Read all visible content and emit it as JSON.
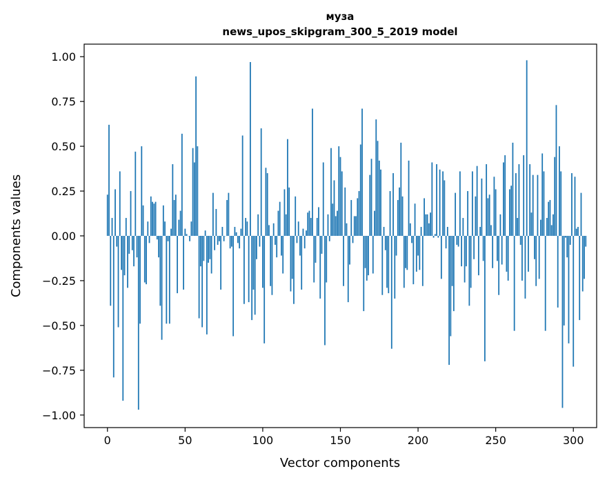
{
  "chart_data": {
    "type": "bar",
    "title": "муза",
    "subtitle": "news_upos_skipgram_300_5_2019 model",
    "xlabel": "Vector components",
    "ylabel": "Components values",
    "xlim": [
      -15,
      315
    ],
    "ylim": [
      -1.07,
      1.07
    ],
    "xticks": [
      0,
      50,
      100,
      150,
      200,
      250,
      300
    ],
    "yticks": [
      -1.0,
      -0.75,
      -0.5,
      -0.25,
      0.0,
      0.25,
      0.5,
      0.75,
      1.0
    ],
    "ytick_labels": [
      "−1.00",
      "−0.75",
      "−0.50",
      "−0.25",
      "0.00",
      "0.25",
      "0.50",
      "0.75",
      "1.00"
    ],
    "grid": false,
    "bar_color": "#1f77b4",
    "values": [
      0.23,
      0.62,
      -0.39,
      0.1,
      -0.79,
      0.26,
      -0.06,
      -0.51,
      0.36,
      -0.19,
      -0.92,
      -0.22,
      0.1,
      -0.29,
      -0.1,
      0.25,
      -0.08,
      -0.17,
      0.47,
      -0.12,
      -0.97,
      -0.49,
      0.5,
      0.17,
      -0.26,
      -0.27,
      0.08,
      -0.04,
      0.22,
      0.19,
      0.18,
      0.19,
      -0.02,
      -0.12,
      -0.39,
      -0.58,
      0.17,
      0.08,
      -0.49,
      -0.03,
      -0.49,
      0.04,
      0.4,
      0.2,
      0.23,
      -0.32,
      0.09,
      0.14,
      0.57,
      -0.3,
      0.04,
      0.01,
      0.0,
      -0.03,
      0.08,
      0.49,
      0.41,
      0.89,
      0.5,
      -0.46,
      -0.17,
      -0.51,
      -0.14,
      0.03,
      -0.55,
      -0.15,
      -0.13,
      -0.21,
      0.24,
      -0.08,
      0.15,
      -0.05,
      -0.03,
      -0.3,
      0.05,
      -0.03,
      0.0,
      0.2,
      0.24,
      -0.07,
      -0.06,
      -0.56,
      0.05,
      0.02,
      -0.04,
      -0.07,
      0.04,
      0.56,
      -0.38,
      0.1,
      0.08,
      -0.37,
      0.97,
      -0.47,
      -0.3,
      -0.44,
      -0.13,
      0.12,
      -0.06,
      0.6,
      -0.29,
      -0.6,
      0.38,
      0.35,
      0.06,
      -0.28,
      -0.33,
      0.07,
      -0.05,
      -0.12,
      0.14,
      0.19,
      -0.11,
      -0.21,
      0.26,
      0.12,
      0.54,
      0.27,
      -0.31,
      -0.24,
      -0.38,
      0.22,
      -0.04,
      0.08,
      -0.11,
      -0.3,
      0.04,
      -0.07,
      0.03,
      0.13,
      0.14,
      0.1,
      0.71,
      -0.26,
      -0.15,
      0.1,
      0.16,
      -0.35,
      -0.1,
      0.41,
      -0.61,
      -0.26,
      0.12,
      -0.03,
      0.49,
      0.18,
      0.31,
      0.11,
      0.14,
      0.5,
      0.44,
      0.36,
      -0.28,
      0.27,
      0.07,
      -0.37,
      -0.16,
      0.2,
      -0.04,
      0.11,
      0.11,
      0.21,
      0.25,
      0.51,
      0.71,
      -0.42,
      -0.18,
      -0.25,
      -0.22,
      0.34,
      0.43,
      -0.21,
      0.14,
      0.65,
      0.53,
      0.42,
      0.37,
      -0.33,
      0.05,
      -0.08,
      -0.29,
      -0.32,
      0.25,
      -0.63,
      0.35,
      -0.35,
      -0.11,
      0.2,
      0.27,
      0.52,
      0.22,
      -0.29,
      -0.18,
      -0.19,
      0.42,
      0.07,
      -0.04,
      -0.27,
      0.18,
      -0.2,
      -0.11,
      -0.19,
      0.05,
      -0.28,
      0.21,
      0.12,
      0.12,
      0.07,
      0.13,
      0.41,
      -0.01,
      0.01,
      0.4,
      -0.01,
      0.37,
      -0.24,
      0.36,
      0.31,
      -0.07,
      0.05,
      -0.72,
      -0.56,
      -0.28,
      -0.42,
      0.24,
      -0.05,
      -0.06,
      0.36,
      -0.17,
      0.1,
      -0.26,
      -0.17,
      0.25,
      -0.39,
      -0.29,
      0.36,
      -0.13,
      0.22,
      0.39,
      -0.22,
      0.05,
      0.32,
      -0.14,
      -0.7,
      0.4,
      0.21,
      0.23,
      0.06,
      -0.18,
      0.33,
      0.26,
      -0.14,
      -0.33,
      0.12,
      -0.16,
      0.41,
      0.45,
      -0.2,
      -0.25,
      0.26,
      0.28,
      0.52,
      -0.53,
      0.35,
      0.1,
      0.4,
      -0.05,
      -0.25,
      0.45,
      -0.35,
      0.98,
      -0.2,
      0.4,
      0.13,
      0.34,
      -0.13,
      -0.28,
      0.34,
      -0.24,
      0.09,
      0.46,
      0.36,
      -0.53,
      0.1,
      0.19,
      0.2,
      0.06,
      0.12,
      0.44,
      0.73,
      -0.4,
      0.5,
      0.36,
      -0.96,
      -0.5,
      -0.01,
      -0.12,
      -0.6,
      -0.05,
      0.35,
      -0.73,
      0.33,
      0.04,
      0.05,
      -0.47,
      0.24,
      -0.31,
      -0.24,
      -0.06
    ]
  }
}
